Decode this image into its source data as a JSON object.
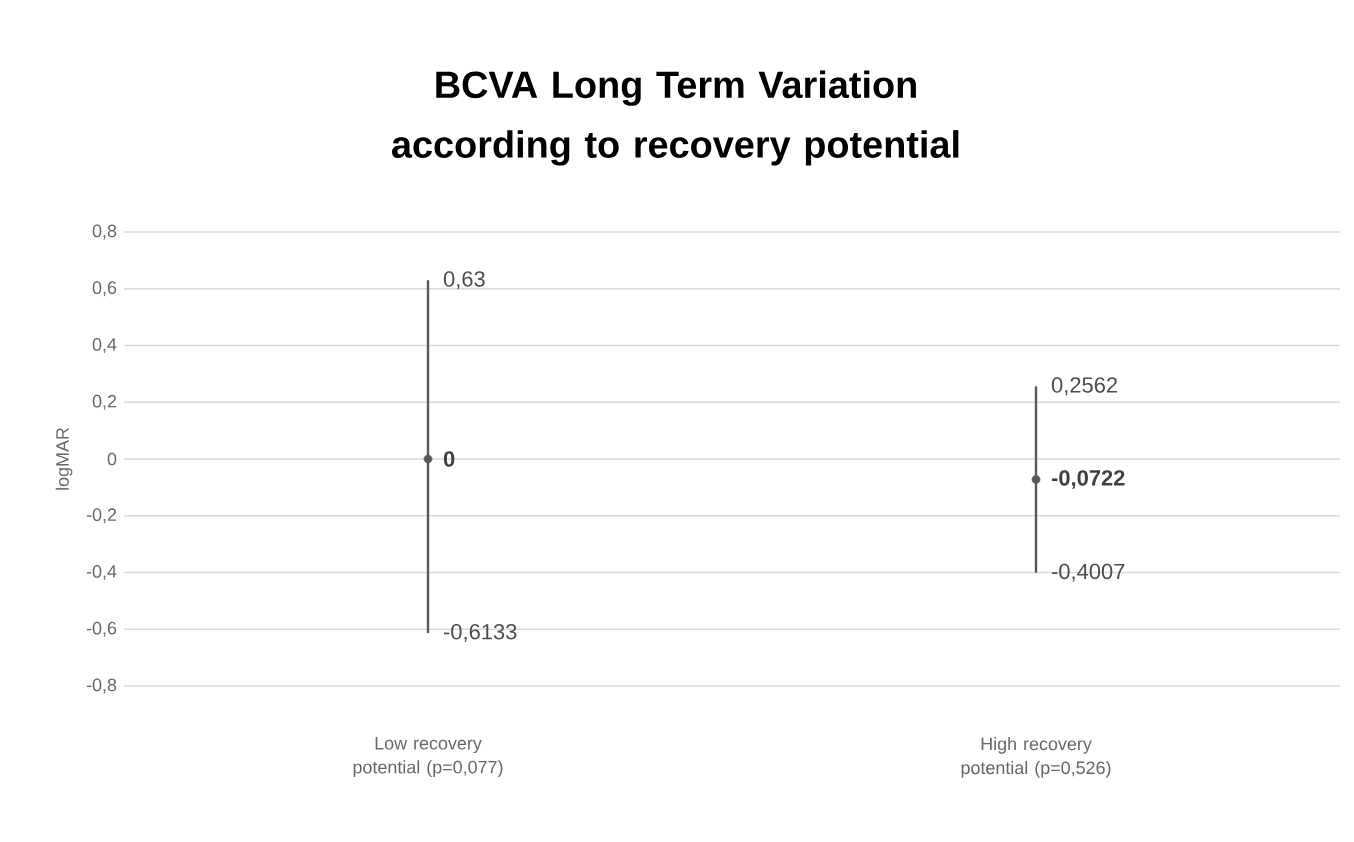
{
  "chart_data": {
    "type": "scatter",
    "title": "BCVA Long Term Variation according to recovery potential",
    "ylabel": "logMAR",
    "categories": [
      "Low recovery potential (p=0,077)",
      "High recovery potential (p=0,526)"
    ],
    "values": [
      0,
      -0.0722
    ],
    "value_labels": [
      "0",
      "-0,0722"
    ],
    "errors": [
      [
        -0.6133,
        0.63
      ],
      [
        -0.4007,
        0.2562
      ]
    ],
    "color": "#595959",
    "marker": "circle",
    "ylim": [
      -0.8,
      0.8
    ],
    "yticks": [
      {
        "value": 0.8,
        "label": "0,8"
      },
      {
        "value": 0.6,
        "label": "0,6"
      },
      {
        "value": 0.4,
        "label": "0,4"
      },
      {
        "value": 0.2,
        "label": "0,2"
      },
      0,
      {
        "value": -0.2,
        "label": "-0,2"
      },
      {
        "value": -0.4,
        "label": "-0,4"
      },
      {
        "value": -0.6,
        "label": "-0,6"
      },
      {
        "value": -0.8,
        "label": "-0,8"
      }
    ],
    "grid": "y",
    "annotations": [
      {
        "text": "0,63",
        "x": "Low recovery potential (p=0,077)",
        "y": 0.63
      },
      {
        "text": "-0,6133",
        "x": "Low recovery potential (p=0,077)",
        "y": -0.6133
      },
      {
        "text": "0,2562",
        "x": "High recovery potential (p=0,526)",
        "y": 0.2562
      },
      {
        "text": "-0,4007",
        "x": "High recovery potential (p=0,526)",
        "y": -0.4007
      }
    ]
  }
}
